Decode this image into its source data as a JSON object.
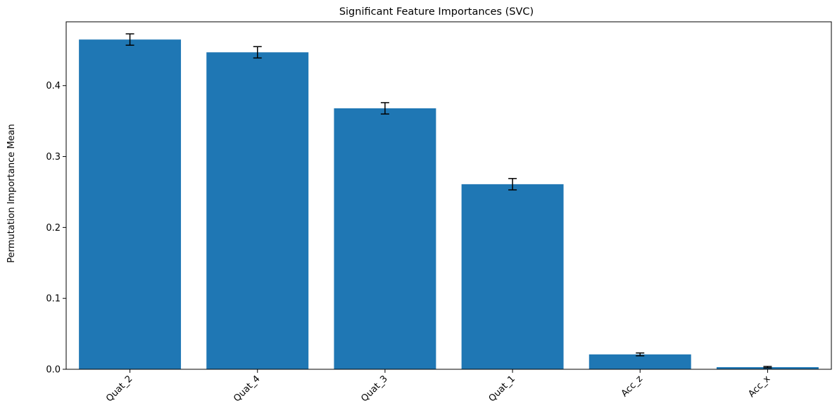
{
  "chart_data": {
    "type": "bar",
    "title": "Significant Feature Importances (SVC)",
    "xlabel": "",
    "ylabel": "Permutation Importance Mean",
    "categories": [
      "Quat_2",
      "Quat_4",
      "Quat_3",
      "Quat_1",
      "Acc_z",
      "Acc_x"
    ],
    "values": [
      0.465,
      0.447,
      0.368,
      0.261,
      0.021,
      0.003
    ],
    "errors": [
      0.008,
      0.008,
      0.008,
      0.008,
      0.002,
      0.001
    ],
    "ylim": [
      0,
      0.49
    ],
    "yticks": [
      0.0,
      0.1,
      0.2,
      0.3,
      0.4
    ],
    "ytick_labels": [
      "0.0",
      "0.1",
      "0.2",
      "0.3",
      "0.4"
    ],
    "bar_color": "#1f77b4",
    "error_color": "#000000",
    "grid": false,
    "legend": "none"
  }
}
